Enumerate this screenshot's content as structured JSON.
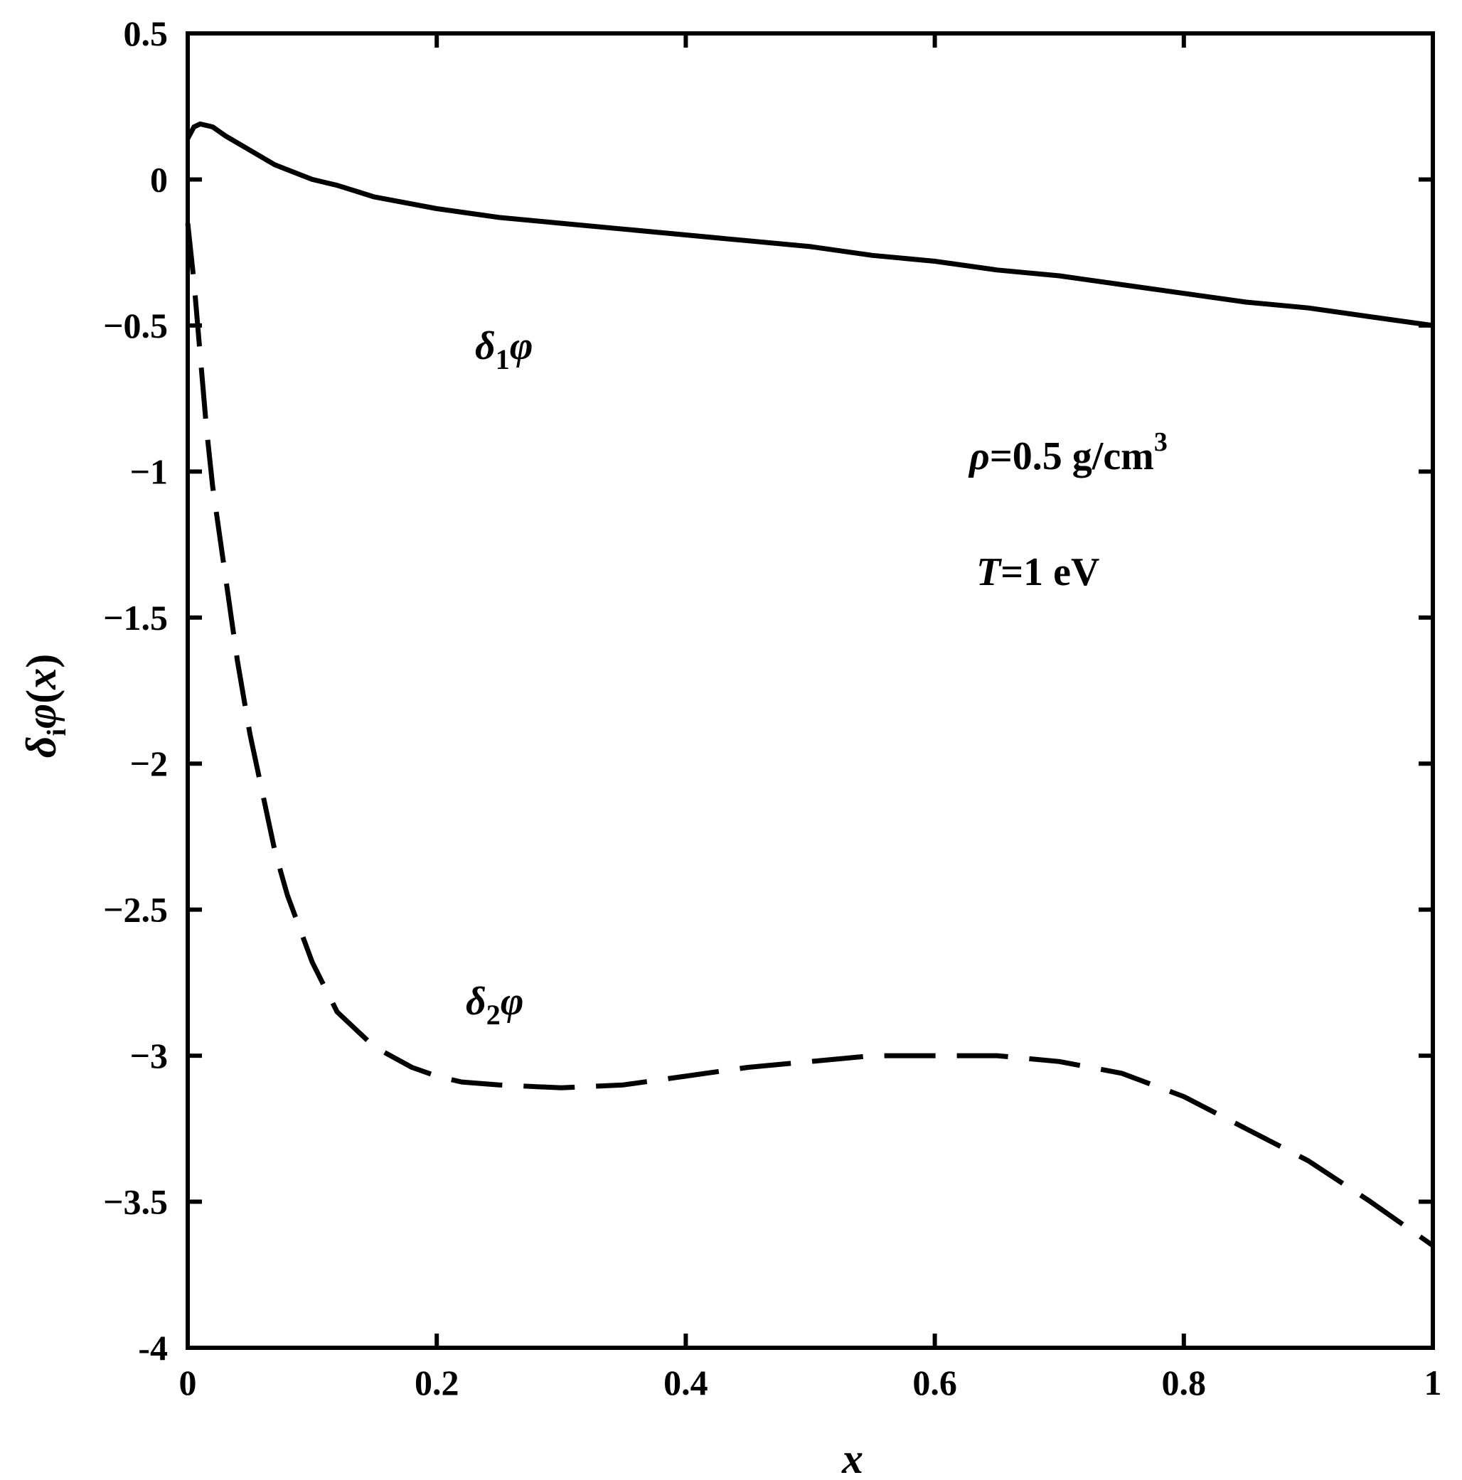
{
  "chart_data": {
    "type": "line",
    "xlabel": "x",
    "ylabel": "δiφ(x)",
    "xlim": [
      0,
      1
    ],
    "ylim": [
      -4,
      0.5
    ],
    "xticks": [
      0,
      0.2,
      0.4,
      0.6,
      0.8,
      1
    ],
    "xtick_labels": [
      "0",
      "0.2",
      "0.4",
      "0.6",
      "0.8",
      "1"
    ],
    "yticks": [
      0.5,
      0,
      -0.5,
      -1,
      -1.5,
      -2,
      -2.5,
      -3,
      -3.5,
      -4
    ],
    "ytick_labels": [
      "0.5",
      "0",
      "−0.5",
      "−1",
      "−1.5",
      "−2",
      "−2.5",
      "−3",
      "−3.5",
      "-4"
    ],
    "grid": false,
    "annotations": [
      {
        "text": "ρ=0.5 g/cm³",
        "parts": [
          "ρ",
          "=0.5 g/cm",
          "3"
        ]
      },
      {
        "text": "T=1 eV",
        "parts": [
          "T",
          "=1 eV"
        ]
      }
    ],
    "series": [
      {
        "name": "δ1φ",
        "label_parts": [
          "δ",
          "1",
          "φ"
        ],
        "style": "solid",
        "x": [
          0.0,
          0.005,
          0.01,
          0.02,
          0.03,
          0.05,
          0.07,
          0.1,
          0.12,
          0.15,
          0.2,
          0.25,
          0.3,
          0.35,
          0.4,
          0.45,
          0.5,
          0.55,
          0.6,
          0.65,
          0.7,
          0.75,
          0.8,
          0.85,
          0.9,
          0.95,
          1.0
        ],
        "y": [
          0.14,
          0.18,
          0.19,
          0.18,
          0.15,
          0.1,
          0.05,
          0.0,
          -0.02,
          -0.06,
          -0.1,
          -0.13,
          -0.15,
          -0.17,
          -0.19,
          -0.21,
          -0.23,
          -0.26,
          -0.28,
          -0.31,
          -0.33,
          -0.36,
          -0.39,
          -0.42,
          -0.44,
          -0.47,
          -0.5
        ]
      },
      {
        "name": "δ2φ",
        "label_parts": [
          "δ",
          "2",
          "φ"
        ],
        "style": "dashed",
        "x": [
          0.0,
          0.005,
          0.01,
          0.015,
          0.02,
          0.03,
          0.04,
          0.05,
          0.06,
          0.07,
          0.08,
          0.1,
          0.12,
          0.15,
          0.18,
          0.2,
          0.22,
          0.25,
          0.3,
          0.35,
          0.4,
          0.45,
          0.5,
          0.55,
          0.6,
          0.65,
          0.7,
          0.75,
          0.8,
          0.85,
          0.9,
          0.95,
          1.0
        ],
        "y": [
          -0.15,
          -0.35,
          -0.6,
          -0.85,
          -1.05,
          -1.35,
          -1.65,
          -1.9,
          -2.1,
          -2.3,
          -2.45,
          -2.68,
          -2.85,
          -2.97,
          -3.04,
          -3.07,
          -3.09,
          -3.1,
          -3.11,
          -3.1,
          -3.07,
          -3.04,
          -3.02,
          -3.0,
          -3.0,
          -3.0,
          -3.02,
          -3.06,
          -3.14,
          -3.25,
          -3.36,
          -3.5,
          -3.65
        ]
      }
    ]
  }
}
